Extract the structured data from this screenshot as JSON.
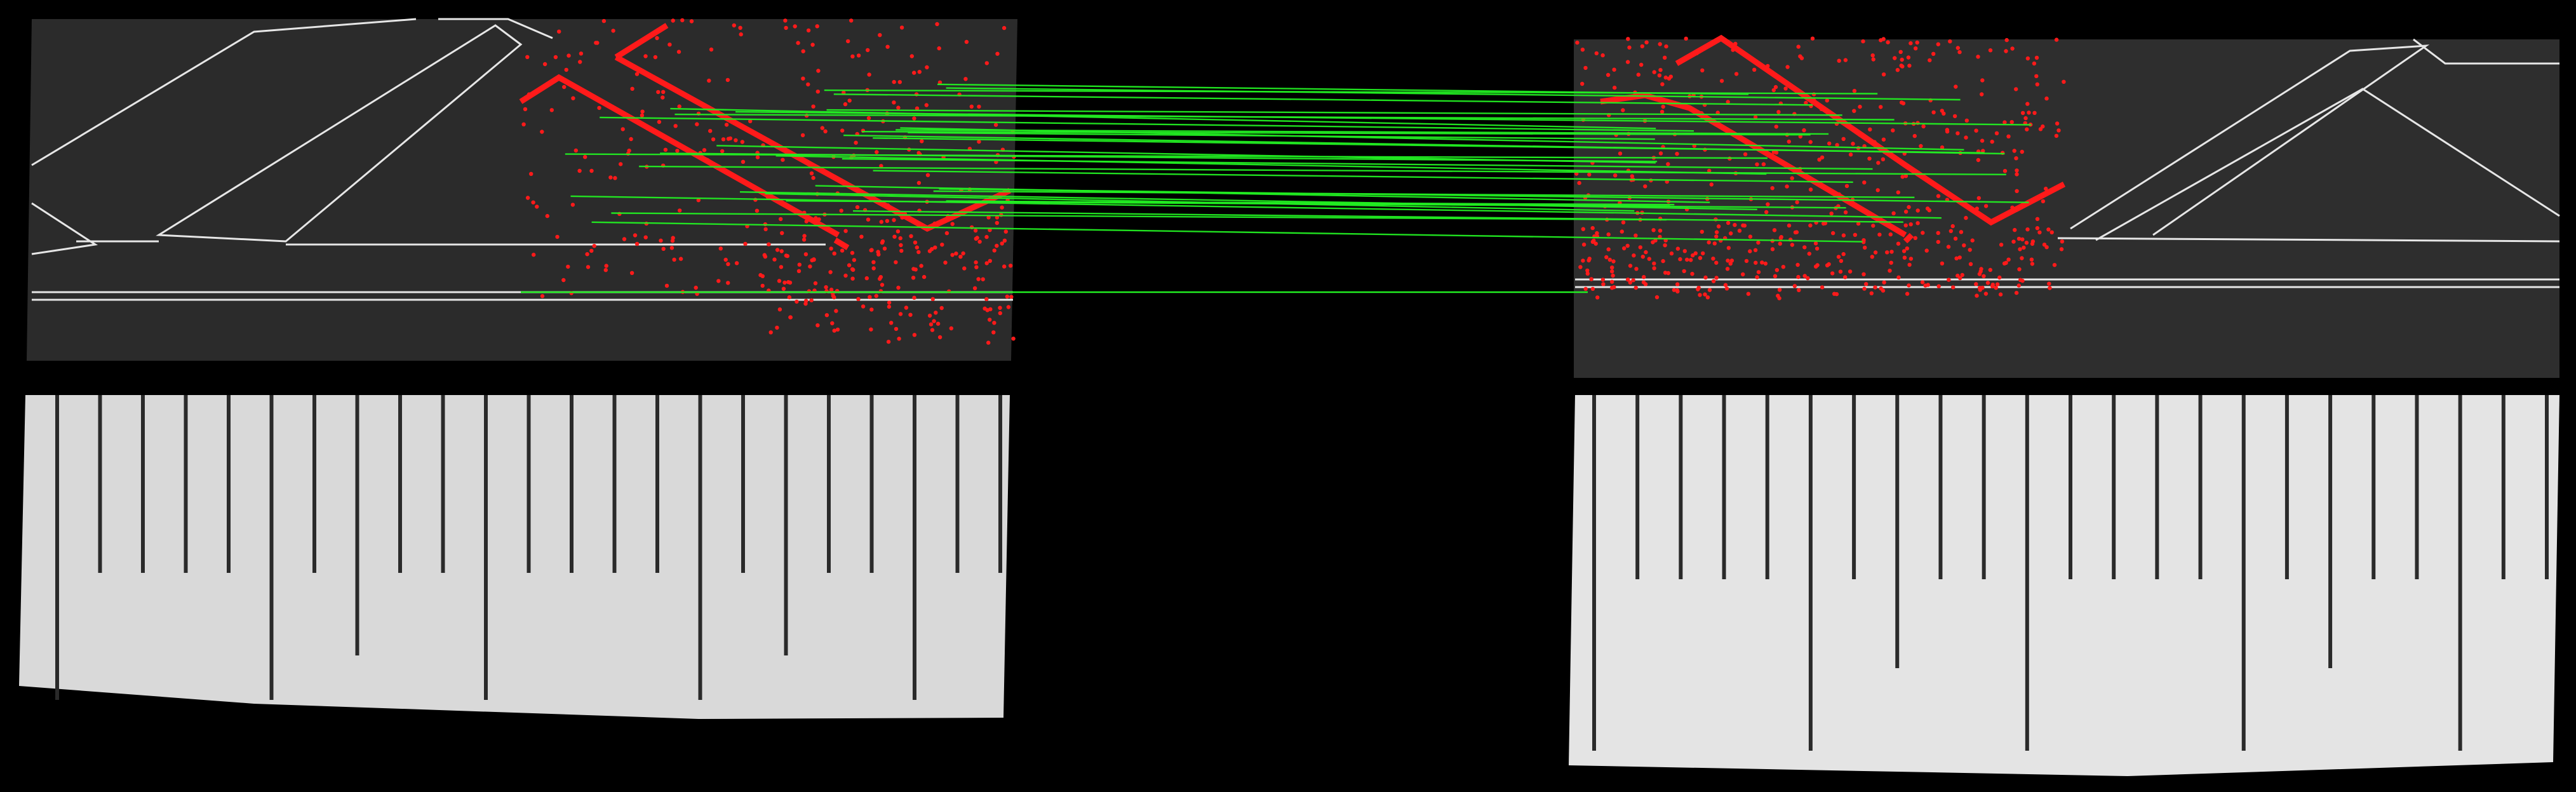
{
  "figure": {
    "description_kind": "feature-matching visualization of two camera frames (mesh pattern above a scale ruler)",
    "colors": {
      "background": "#000000",
      "mesh_surface": "#2b2b2b",
      "mesh_outline": "#e6e6e6",
      "keypoint": "#ff1a1a",
      "match_line": "#22ee22",
      "ruler_left": "#d9d9d9",
      "ruler_right": "#e4e4e4",
      "ruler_tick": "#2a2a2a"
    },
    "left_frame": {
      "name": "left-image",
      "keypoint_count": 420,
      "ruler_ticks_long_every": 5
    },
    "right_frame": {
      "name": "right-image",
      "keypoint_count": 560,
      "ruler_ticks_long_every": 5
    },
    "match_count": 34
  }
}
